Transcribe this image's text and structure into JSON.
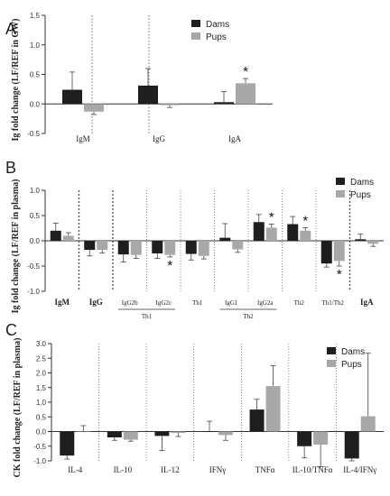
{
  "chart_data": [
    {
      "type": "bar",
      "panel": "A",
      "ylabel": "Ig fold change (LF/REF in GW)",
      "ylim": [
        -0.5,
        1.5
      ],
      "yticks": [
        -0.5,
        0.0,
        0.5,
        1.0,
        1.5
      ],
      "ytick_labels": [
        "-0.5",
        "0.0",
        "0.5",
        "1.0",
        "1.5"
      ],
      "categories": [
        "IgM",
        "IgG",
        "IgA"
      ],
      "series": [
        {
          "name": "Dams",
          "values": [
            0.24,
            0.31,
            0.03
          ],
          "errors": [
            0.3,
            0.29,
            0.18
          ]
        },
        {
          "name": "Pups",
          "values": [
            -0.13,
            -0.02,
            0.35
          ],
          "errors": [
            0.05,
            0.04,
            0.08
          ]
        }
      ],
      "significance": [
        {
          "category": "IgA",
          "series": "Pups",
          "label": "*"
        }
      ],
      "legend": "top-right"
    },
    {
      "type": "bar",
      "panel": "B",
      "ylabel": "Ig fold change (LF/REF in plasma)",
      "ylim": [
        -1.0,
        1.0
      ],
      "yticks": [
        -1.0,
        -0.5,
        0.0,
        0.5,
        1.0
      ],
      "ytick_labels": [
        "-1.0",
        "-0.5",
        "0.0",
        "0.5",
        "1.0"
      ],
      "categories": [
        "IgM",
        "IgG",
        "IgG2b",
        "IgG2c",
        "Th1",
        "IgG1",
        "IgG2a",
        "Th2",
        "Th1/Th2",
        "IgA"
      ],
      "bold_categories": [
        "IgM",
        "IgG",
        "IgA"
      ],
      "groups": [
        {
          "label": "Th1",
          "categories": [
            "IgG2b",
            "IgG2c"
          ]
        },
        {
          "label": "Th2",
          "categories": [
            "IgG1",
            "IgG2a"
          ]
        }
      ],
      "series": [
        {
          "name": "Dams",
          "values": [
            0.2,
            -0.18,
            -0.27,
            -0.25,
            -0.26,
            0.06,
            0.37,
            0.33,
            -0.45,
            0.03
          ],
          "errors": [
            0.15,
            0.12,
            0.15,
            0.1,
            0.12,
            0.28,
            0.15,
            0.15,
            0.07,
            0.1
          ]
        },
        {
          "name": "Pups",
          "values": [
            0.1,
            -0.18,
            -0.28,
            -0.28,
            -0.3,
            -0.17,
            0.26,
            0.2,
            -0.4,
            -0.06
          ],
          "errors": [
            0.06,
            0.06,
            0.07,
            0.04,
            0.06,
            0.06,
            0.07,
            0.06,
            0.1,
            0.05
          ]
        }
      ],
      "significance": [
        {
          "category": "IgG2c",
          "series": "Pups",
          "label": "*"
        },
        {
          "category": "IgG2a",
          "series": "Pups",
          "label": "*"
        },
        {
          "category": "Th2",
          "series": "Pups",
          "label": "*"
        },
        {
          "category": "Th1/Th2",
          "series": "Pups",
          "label": "*"
        }
      ],
      "legend": "top-right"
    },
    {
      "type": "bar",
      "panel": "C",
      "ylabel": "CK fold change (LF/REF in plasma)",
      "ylim": [
        -1.0,
        3.0
      ],
      "yticks": [
        -1.0,
        -0.5,
        0.0,
        0.5,
        1.0,
        1.5,
        2.0,
        2.5,
        3.0
      ],
      "ytick_labels": [
        "-1.0",
        "-0.5",
        "0.0",
        "0.5",
        "1.0",
        "1.5",
        "2.0",
        "2.5",
        "3.0"
      ],
      "categories": [
        "IL-4",
        "IL-10",
        "IL-12",
        "IFNγ",
        "TNFα",
        "IL-10/TNFα",
        "IL-4/IFNγ"
      ],
      "series": [
        {
          "name": "Dams",
          "values": [
            -0.82,
            -0.2,
            -0.15,
            0.0,
            0.75,
            -0.5,
            -0.92
          ],
          "errors": [
            0.12,
            0.1,
            0.5,
            0.35,
            0.35,
            0.4,
            0.08
          ]
        },
        {
          "name": "Pups",
          "values": [
            0.0,
            -0.28,
            -0.05,
            -0.12,
            1.55,
            -0.45,
            0.52
          ],
          "errors": [
            0.2,
            0.05,
            0.12,
            0.18,
            0.7,
            0.75,
            2.15
          ]
        }
      ],
      "legend": "top-right"
    }
  ],
  "panel_labels": [
    "A",
    "B",
    "C"
  ],
  "colors": {
    "dams": "#1e1e1e",
    "pups": "#a8a8a8"
  }
}
